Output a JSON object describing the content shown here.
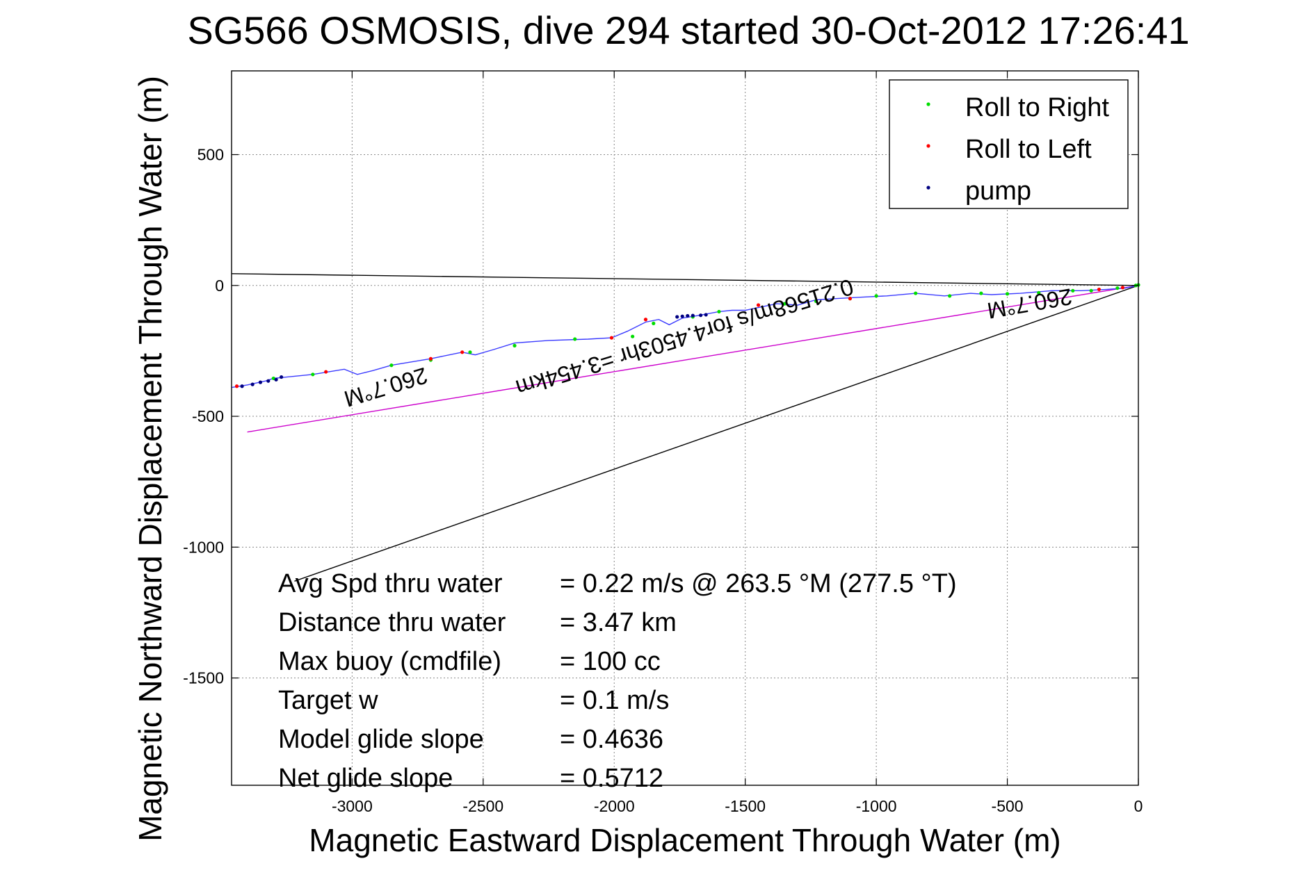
{
  "chart_data": {
    "type": "line",
    "title": "SG566 OSMOSIS, dive 294 started 30-Oct-2012 17:26:41",
    "xlabel": "Magnetic Eastward Displacement Through Water (m)",
    "ylabel": "Magnetic Northward Displacement Through Water (m)",
    "xlim": [
      -3460,
      0
    ],
    "ylim": [
      -1910,
      820
    ],
    "xticks": [
      -3000,
      -2500,
      -2000,
      -1500,
      -1000,
      -500,
      0
    ],
    "yticks": [
      500,
      0,
      -500,
      -1000,
      -1500
    ],
    "xtick_labels": [
      "-3000",
      "-2500",
      "-2000",
      "-1500",
      "-1000",
      "-500",
      "0"
    ],
    "ytick_labels": [
      "500",
      "0",
      "-500",
      "-1000",
      "-1500"
    ],
    "grid": true,
    "legend_position": "top-right",
    "legend": [
      {
        "label": "Roll to Right",
        "color": "#00dd00"
      },
      {
        "label": "Roll to Left",
        "color": "#ff0000"
      },
      {
        "label": "pump",
        "color": "#000080"
      }
    ],
    "track": {
      "name": "glider track",
      "color": "#3a3aff",
      "x": [
        -3460,
        -3400,
        -3330,
        -3300,
        -3250,
        -3150,
        -3030,
        -2980,
        -2920,
        -2850,
        -2700,
        -2580,
        -2530,
        -2460,
        -2380,
        -2250,
        -2100,
        -2010,
        -1950,
        -1880,
        -1830,
        -1790,
        -1740,
        -1680,
        -1600,
        -1550,
        -1500,
        -1430,
        -1380,
        -1300,
        -1230,
        -1150,
        -1060,
        -960,
        -850,
        -740,
        -640,
        -560,
        -450,
        -330,
        -220,
        -120,
        -50,
        0
      ],
      "y": [
        -390,
        -380,
        -365,
        -355,
        -350,
        -340,
        -320,
        -340,
        -325,
        -305,
        -280,
        -255,
        -265,
        -245,
        -220,
        -210,
        -205,
        -200,
        -175,
        -140,
        -130,
        -150,
        -125,
        -115,
        -100,
        -95,
        -95,
        -80,
        -70,
        -75,
        -55,
        -50,
        -45,
        -40,
        -30,
        -40,
        -30,
        -35,
        -30,
        -20,
        -20,
        -15,
        -10,
        0
      ]
    },
    "markers": [
      {
        "type": "roll_right",
        "x": [
          -3300,
          -3150,
          -2850,
          -2700,
          -2550,
          -2380,
          -2150,
          -1930,
          -1850,
          -1700,
          -1600,
          -1350,
          -1230,
          -1100,
          -1000,
          -850,
          -720,
          -600,
          -500,
          -380,
          -250,
          -180,
          -80,
          -10,
          0
        ],
        "y": [
          -355,
          -340,
          -305,
          -285,
          -255,
          -230,
          -205,
          -195,
          -145,
          -120,
          -100,
          -70,
          -60,
          -50,
          -40,
          -30,
          -40,
          -30,
          -32,
          -28,
          -20,
          -20,
          -10,
          0,
          2
        ]
      },
      {
        "type": "roll_left",
        "x": [
          -3440,
          -3100,
          -2700,
          -2580,
          -2010,
          -1880,
          -1450,
          -1100,
          -150,
          -60
        ],
        "y": [
          -385,
          -330,
          -280,
          -255,
          -200,
          -130,
          -75,
          -50,
          -15,
          -8
        ]
      },
      {
        "type": "pump",
        "x": [
          -3420,
          -3380,
          -3350,
          -3320,
          -3290,
          -3270,
          -1760,
          -1740,
          -1720,
          -1700,
          -1670,
          -1650
        ],
        "y": [
          -385,
          -378,
          -370,
          -365,
          -360,
          -350,
          -120,
          -118,
          -116,
          -115,
          -114,
          -112
        ]
      }
    ],
    "reference_lines": [
      {
        "name": "upper-ray",
        "color": "#000000",
        "x": [
          -3460,
          0
        ],
        "y": [
          45,
          0
        ]
      },
      {
        "name": "lower-ray",
        "color": "#000000",
        "x": [
          -3220,
          0
        ],
        "y": [
          -1130,
          0
        ]
      },
      {
        "name": "avg-velocity-line",
        "color": "#cc00cc",
        "x": [
          -3400,
          0
        ],
        "y": [
          -560,
          0
        ]
      }
    ],
    "annotations": [
      {
        "name": "heading-label-left",
        "text": "260.7°M",
        "x": -2880,
        "y": -360,
        "rotate": 180
      },
      {
        "name": "heading-label-right",
        "text": "260.7°M",
        "x": -420,
        "y": -40,
        "rotate": 180
      },
      {
        "name": "velocity-label",
        "text": "0.21568m/s for4.4503hr =3.454km",
        "x": -1740,
        "y": -170,
        "rotate": 180
      }
    ],
    "stats": [
      {
        "label": "Avg Spd thru water",
        "value": "=  0.22 m/s @ 263.5 °M (277.5 °T)"
      },
      {
        "label": "Distance thru water",
        "value": "=  3.47 km"
      },
      {
        "label": "Max buoy (cmdfile)",
        "value": "= 100 cc"
      },
      {
        "label": "Target w",
        "value": "= 0.1 m/s"
      },
      {
        "label": "Model glide slope",
        "value": "= 0.4636"
      },
      {
        "label": "Net glide slope",
        "value": "= 0.5712"
      }
    ]
  }
}
